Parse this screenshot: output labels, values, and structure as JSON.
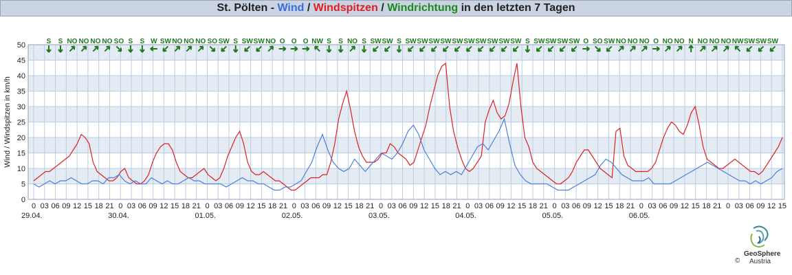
{
  "header": {
    "place": "St. Pölten - ",
    "wind": "Wind",
    "sep1": " / ",
    "windspitzen": "Windspitzen",
    "sep2": " / ",
    "windrichtung": "Windrichtung",
    "suffix": " in den letzten 7 Tagen"
  },
  "branding": {
    "name": "GeoSphere",
    "sub": "Austria",
    "copyright": "©"
  },
  "colors": {
    "wind": "#4a7ee0",
    "windspitzen": "#e02020",
    "windrichtung": "#1e7a1e",
    "band": "#e4ebf3",
    "grid": "#b9cde4"
  },
  "chart_data": {
    "type": "line",
    "ylabel": "Wind / Windspitzen in km/h",
    "ylim": [
      0,
      50
    ],
    "yticks": [
      0,
      5,
      10,
      15,
      20,
      25,
      30,
      35,
      40,
      45,
      50
    ],
    "x_hour_labels": [
      "0",
      "03",
      "06",
      "09",
      "12",
      "15",
      "18",
      "21",
      "0",
      "03",
      "06",
      "09",
      "12",
      "15",
      "18",
      "21",
      "0",
      "03",
      "06",
      "09",
      "12",
      "15",
      "18",
      "21",
      "0",
      "03",
      "06",
      "09",
      "12",
      "15",
      "18",
      "21",
      "0",
      "03",
      "06",
      "09",
      "12",
      "15",
      "18",
      "21",
      "0",
      "03",
      "06",
      "09",
      "12",
      "15",
      "18",
      "21",
      "0",
      "03",
      "06",
      "09",
      "12",
      "15",
      "18",
      "21",
      "0",
      "03",
      "06",
      "09",
      "12",
      "15",
      "18",
      "21",
      "0",
      "03",
      "06",
      "09",
      "12",
      "15"
    ],
    "x_date_labels": [
      "29.04.",
      "30.04.",
      "01.05.",
      "02.05.",
      "03.05.",
      "04.05.",
      "05.05.",
      "06.05."
    ],
    "grid": true,
    "x_step_hours": 3,
    "series": [
      {
        "name": "Wind",
        "values": [
          5,
          4,
          5,
          6,
          5,
          6,
          6,
          7,
          6,
          5,
          5,
          6,
          6,
          5,
          7,
          7,
          8,
          6,
          5,
          6,
          5,
          5,
          7,
          6,
          5,
          6,
          5,
          5,
          6,
          7,
          6,
          6,
          5,
          5,
          5,
          5,
          4,
          5,
          6,
          7,
          6,
          6,
          5,
          5,
          4,
          3,
          3,
          4,
          4,
          5,
          6,
          9,
          12,
          17,
          21,
          16,
          12,
          10,
          9,
          10,
          13,
          11,
          9,
          11,
          13,
          15,
          14,
          13,
          15,
          18,
          22,
          24,
          21,
          16,
          13,
          10,
          8,
          9,
          8,
          9,
          8,
          11,
          14,
          17,
          18,
          16,
          19,
          22,
          26,
          18,
          11,
          8,
          6,
          5,
          5,
          5,
          5,
          4,
          3,
          3,
          3,
          4,
          5,
          6,
          7,
          8,
          11,
          13,
          12,
          10,
          8,
          7,
          6,
          6,
          6,
          7,
          5,
          5,
          5,
          5,
          6,
          7,
          8,
          9,
          10,
          11,
          12,
          11,
          10,
          9,
          8,
          7,
          6,
          6,
          5,
          6,
          5,
          6,
          7,
          9,
          10
        ]
      },
      {
        "name": "Windspitzen",
        "values": [
          6,
          7,
          8,
          9,
          9,
          10,
          11,
          12,
          13,
          14,
          16,
          18,
          21,
          20,
          18,
          12,
          9,
          8,
          7,
          6,
          6,
          7,
          9,
          10,
          7,
          6,
          5,
          5,
          6,
          8,
          12,
          15,
          17,
          18,
          18,
          16,
          12,
          9,
          8,
          7,
          7,
          8,
          9,
          10,
          8,
          7,
          6,
          7,
          10,
          14,
          17,
          20,
          22,
          18,
          12,
          9,
          8,
          8,
          9,
          8,
          7,
          6,
          6,
          5,
          4,
          3,
          3,
          4,
          5,
          6,
          7,
          7,
          7,
          8,
          8,
          12,
          18,
          26,
          31,
          35,
          29,
          22,
          17,
          14,
          12,
          12,
          12,
          13,
          15,
          15,
          18,
          17,
          15,
          14,
          13,
          11,
          12,
          16,
          20,
          24,
          30,
          35,
          40,
          43,
          44,
          30,
          22,
          17,
          13,
          10,
          9,
          10,
          12,
          14,
          25,
          29,
          32,
          28,
          26,
          27,
          31,
          38,
          44,
          30,
          20,
          17,
          12,
          10,
          9,
          8,
          7,
          6,
          5,
          5,
          6,
          7,
          9,
          12,
          14,
          16,
          16,
          14,
          12,
          10,
          9,
          8,
          7,
          22,
          23,
          14,
          11,
          10,
          9,
          9,
          9,
          9,
          10,
          12,
          16,
          20,
          23,
          25,
          24,
          22,
          21,
          24,
          28,
          30,
          24,
          17,
          13,
          12,
          11,
          10,
          10,
          11,
          12,
          13,
          12,
          11,
          10,
          9,
          9,
          8,
          9,
          11,
          13,
          15,
          17,
          20
        ]
      }
    ],
    "direction_labels": [
      "S",
      "S",
      "NO",
      "NO",
      "NO",
      "NO",
      "SO",
      "S",
      "S",
      "W",
      "SW",
      "NO",
      "NO",
      "NO",
      "SO",
      "SW",
      "S",
      "SW",
      "SW",
      "NO",
      "O",
      "O",
      "O",
      "NW",
      "S",
      "S",
      "NO",
      "S",
      "SW",
      "SW",
      "S",
      "SW",
      "SW",
      "SW",
      "SW",
      "SW",
      "SW",
      "SW",
      "SW",
      "SW",
      "SW",
      "S",
      "SW",
      "SW",
      "SW",
      "SW",
      "O",
      "SO",
      "SW",
      "NO",
      "NO",
      "NO",
      "O",
      "NO",
      "NO",
      "N",
      "NO",
      "NO",
      "NO",
      "NW",
      "SW",
      "SW",
      "SW"
    ]
  }
}
